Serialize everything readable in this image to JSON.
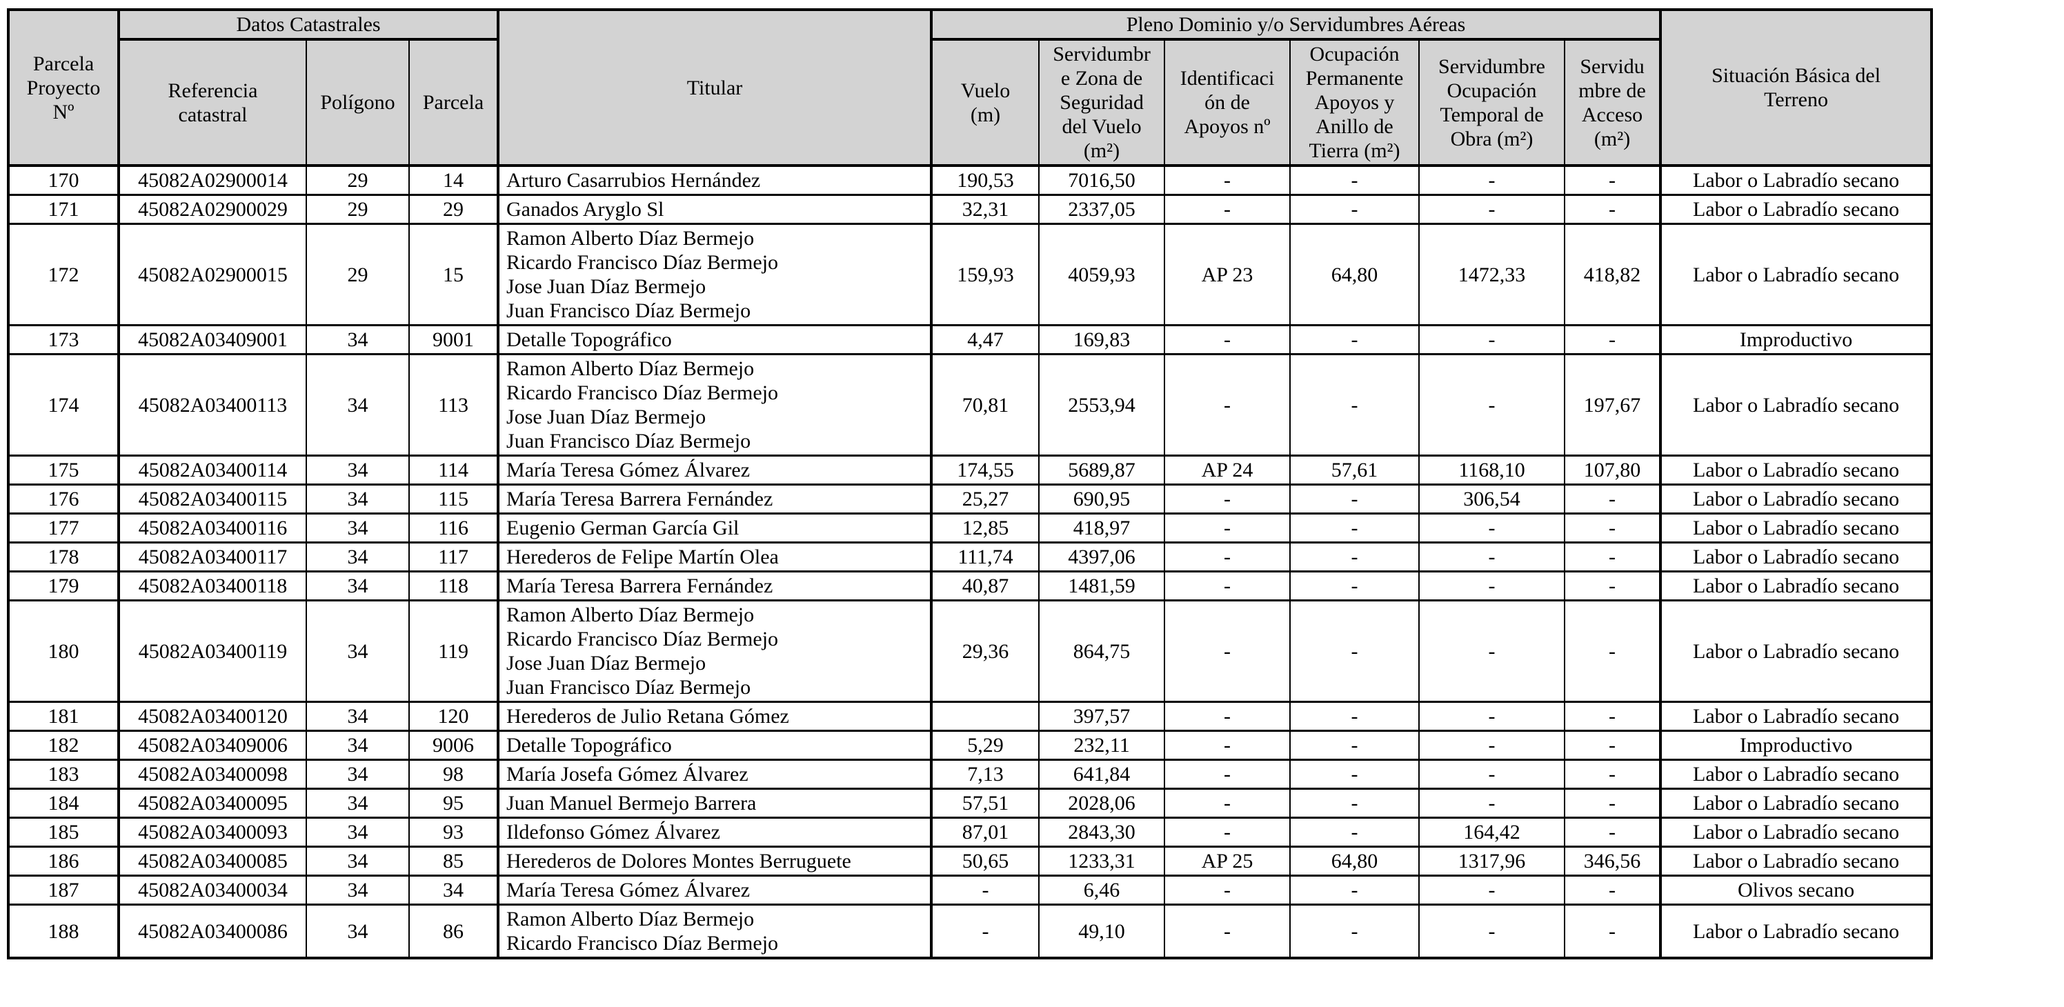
{
  "colors": {
    "header_bg": "#d3d3d3",
    "border": "#000000",
    "text": "#000000",
    "page_bg": "#ffffff"
  },
  "table": {
    "headers": {
      "parcela_proyecto": "Parcela\nProyecto\nNº",
      "datos_catastrales": "Datos Catastrales",
      "referencia": "Referencia\ncatastral",
      "poligono": "Polígono",
      "parcela": "Parcela",
      "titular": "Titular",
      "pleno_dominio": "Pleno Dominio y/o Servidumbres Aéreas",
      "vuelo": "Vuelo\n(m)",
      "servidumbre_zona": "Servidumbr\ne Zona de\nSeguridad\ndel Vuelo\n(m²)",
      "identificacion": "Identificaci\nón de\nApoyos nº",
      "ocupacion_permanente": "Ocupación\nPermanente\nApoyos y\nAnillo de\nTierra (m²)",
      "servidumbre_temporal": "Servidumbre\nOcupación\nTemporal de\nObra (m²)",
      "servidumbre_acceso": "Servidu\nmbre de\nAcceso\n(m²)",
      "situacion": "Situación Básica del\nTerreno"
    },
    "rows": [
      {
        "num": "170",
        "ref": "45082A02900014",
        "poligono": "29",
        "parcela": "14",
        "titular": [
          "Arturo Casarrubios Hernández"
        ],
        "vuelo": "190,53",
        "servidumbre": "7016,50",
        "apoyos": "-",
        "ocupacion": "-",
        "temporal": "-",
        "acceso": "-",
        "situacion": "Labor o Labradío secano"
      },
      {
        "num": "171",
        "ref": "45082A02900029",
        "poligono": "29",
        "parcela": "29",
        "titular": [
          "Ganados Aryglo Sl"
        ],
        "vuelo": "32,31",
        "servidumbre": "2337,05",
        "apoyos": "-",
        "ocupacion": "-",
        "temporal": "-",
        "acceso": "-",
        "situacion": "Labor o Labradío secano"
      },
      {
        "num": "172",
        "ref": "45082A02900015",
        "poligono": "29",
        "parcela": "15",
        "titular": [
          "Ramon Alberto Díaz Bermejo",
          "Ricardo Francisco Díaz Bermejo",
          "Jose Juan Díaz Bermejo",
          "Juan Francisco Díaz Bermejo"
        ],
        "vuelo": "159,93",
        "servidumbre": "4059,93",
        "apoyos": "AP 23",
        "ocupacion": "64,80",
        "temporal": "1472,33",
        "acceso": "418,82",
        "situacion": "Labor o Labradío secano"
      },
      {
        "num": "173",
        "ref": "45082A03409001",
        "poligono": "34",
        "parcela": "9001",
        "titular": [
          "Detalle Topográfico"
        ],
        "vuelo": "4,47",
        "servidumbre": "169,83",
        "apoyos": "-",
        "ocupacion": "-",
        "temporal": "-",
        "acceso": "-",
        "situacion": "Improductivo"
      },
      {
        "num": "174",
        "ref": "45082A03400113",
        "poligono": "34",
        "parcela": "113",
        "titular": [
          "Ramon Alberto Díaz Bermejo",
          "Ricardo Francisco Díaz Bermejo",
          "Jose Juan Díaz Bermejo",
          "Juan Francisco Díaz Bermejo"
        ],
        "vuelo": "70,81",
        "servidumbre": "2553,94",
        "apoyos": "-",
        "ocupacion": "-",
        "temporal": "-",
        "acceso": "197,67",
        "situacion": "Labor o Labradío secano"
      },
      {
        "num": "175",
        "ref": "45082A03400114",
        "poligono": "34",
        "parcela": "114",
        "titular": [
          "María Teresa Gómez Álvarez"
        ],
        "vuelo": "174,55",
        "servidumbre": "5689,87",
        "apoyos": "AP 24",
        "ocupacion": "57,61",
        "temporal": "1168,10",
        "acceso": "107,80",
        "situacion": "Labor o Labradío secano"
      },
      {
        "num": "176",
        "ref": "45082A03400115",
        "poligono": "34",
        "parcela": "115",
        "titular": [
          "María Teresa Barrera Fernández"
        ],
        "vuelo": "25,27",
        "servidumbre": "690,95",
        "apoyos": "-",
        "ocupacion": "-",
        "temporal": "306,54",
        "acceso": "-",
        "situacion": "Labor o Labradío secano"
      },
      {
        "num": "177",
        "ref": "45082A03400116",
        "poligono": "34",
        "parcela": "116",
        "titular": [
          "Eugenio German García Gil"
        ],
        "vuelo": "12,85",
        "servidumbre": "418,97",
        "apoyos": "-",
        "ocupacion": "-",
        "temporal": "-",
        "acceso": "-",
        "situacion": "Labor o Labradío secano"
      },
      {
        "num": "178",
        "ref": "45082A03400117",
        "poligono": "34",
        "parcela": "117",
        "titular": [
          "Herederos de Felipe Martín Olea"
        ],
        "vuelo": "111,74",
        "servidumbre": "4397,06",
        "apoyos": "-",
        "ocupacion": "-",
        "temporal": "-",
        "acceso": "-",
        "situacion": "Labor o Labradío secano"
      },
      {
        "num": "179",
        "ref": "45082A03400118",
        "poligono": "34",
        "parcela": "118",
        "titular": [
          "María Teresa Barrera Fernández"
        ],
        "vuelo": "40,87",
        "servidumbre": "1481,59",
        "apoyos": "-",
        "ocupacion": "-",
        "temporal": "-",
        "acceso": "-",
        "situacion": "Labor o Labradío secano"
      },
      {
        "num": "180",
        "ref": "45082A03400119",
        "poligono": "34",
        "parcela": "119",
        "titular": [
          "Ramon Alberto Díaz Bermejo",
          "Ricardo Francisco Díaz Bermejo",
          "Jose Juan Díaz Bermejo",
          "Juan Francisco Díaz Bermejo"
        ],
        "vuelo": "29,36",
        "servidumbre": "864,75",
        "apoyos": "-",
        "ocupacion": "-",
        "temporal": "-",
        "acceso": "-",
        "situacion": "Labor o Labradío secano"
      },
      {
        "num": "181",
        "ref": "45082A03400120",
        "poligono": "34",
        "parcela": "120",
        "titular": [
          "Herederos de Julio Retana Gómez"
        ],
        "vuelo": "",
        "servidumbre": "397,57",
        "apoyos": "-",
        "ocupacion": "-",
        "temporal": "-",
        "acceso": "-",
        "situacion": "Labor o Labradío secano"
      },
      {
        "num": "182",
        "ref": "45082A03409006",
        "poligono": "34",
        "parcela": "9006",
        "titular": [
          "Detalle Topográfico"
        ],
        "vuelo": "5,29",
        "servidumbre": "232,11",
        "apoyos": "-",
        "ocupacion": "-",
        "temporal": "-",
        "acceso": "-",
        "situacion": "Improductivo"
      },
      {
        "num": "183",
        "ref": "45082A03400098",
        "poligono": "34",
        "parcela": "98",
        "titular": [
          "María Josefa Gómez Álvarez"
        ],
        "vuelo": "7,13",
        "servidumbre": "641,84",
        "apoyos": "-",
        "ocupacion": "-",
        "temporal": "-",
        "acceso": "-",
        "situacion": "Labor o Labradío secano"
      },
      {
        "num": "184",
        "ref": "45082A03400095",
        "poligono": "34",
        "parcela": "95",
        "titular": [
          "Juan Manuel Bermejo Barrera"
        ],
        "vuelo": "57,51",
        "servidumbre": "2028,06",
        "apoyos": "-",
        "ocupacion": "-",
        "temporal": "-",
        "acceso": "-",
        "situacion": "Labor o Labradío secano"
      },
      {
        "num": "185",
        "ref": "45082A03400093",
        "poligono": "34",
        "parcela": "93",
        "titular": [
          "Ildefonso Gómez Álvarez"
        ],
        "vuelo": "87,01",
        "servidumbre": "2843,30",
        "apoyos": "-",
        "ocupacion": "-",
        "temporal": "164,42",
        "acceso": "-",
        "situacion": "Labor o Labradío secano"
      },
      {
        "num": "186",
        "ref": "45082A03400085",
        "poligono": "34",
        "parcela": "85",
        "titular": [
          "Herederos de Dolores Montes Berruguete"
        ],
        "vuelo": "50,65",
        "servidumbre": "1233,31",
        "apoyos": "AP 25",
        "ocupacion": "64,80",
        "temporal": "1317,96",
        "acceso": "346,56",
        "situacion": "Labor o Labradío secano"
      },
      {
        "num": "187",
        "ref": "45082A03400034",
        "poligono": "34",
        "parcela": "34",
        "titular": [
          "María Teresa Gómez Álvarez"
        ],
        "vuelo": "-",
        "servidumbre": "6,46",
        "apoyos": "-",
        "ocupacion": "-",
        "temporal": "-",
        "acceso": "-",
        "situacion": "Olivos secano"
      },
      {
        "num": "188",
        "ref": "45082A03400086",
        "poligono": "34",
        "parcela": "86",
        "titular": [
          "Ramon Alberto Díaz Bermejo",
          "Ricardo Francisco Díaz Bermejo"
        ],
        "vuelo": "-",
        "servidumbre": "49,10",
        "apoyos": "-",
        "ocupacion": "-",
        "temporal": "-",
        "acceso": "-",
        "situacion": "Labor o Labradío secano"
      }
    ]
  }
}
